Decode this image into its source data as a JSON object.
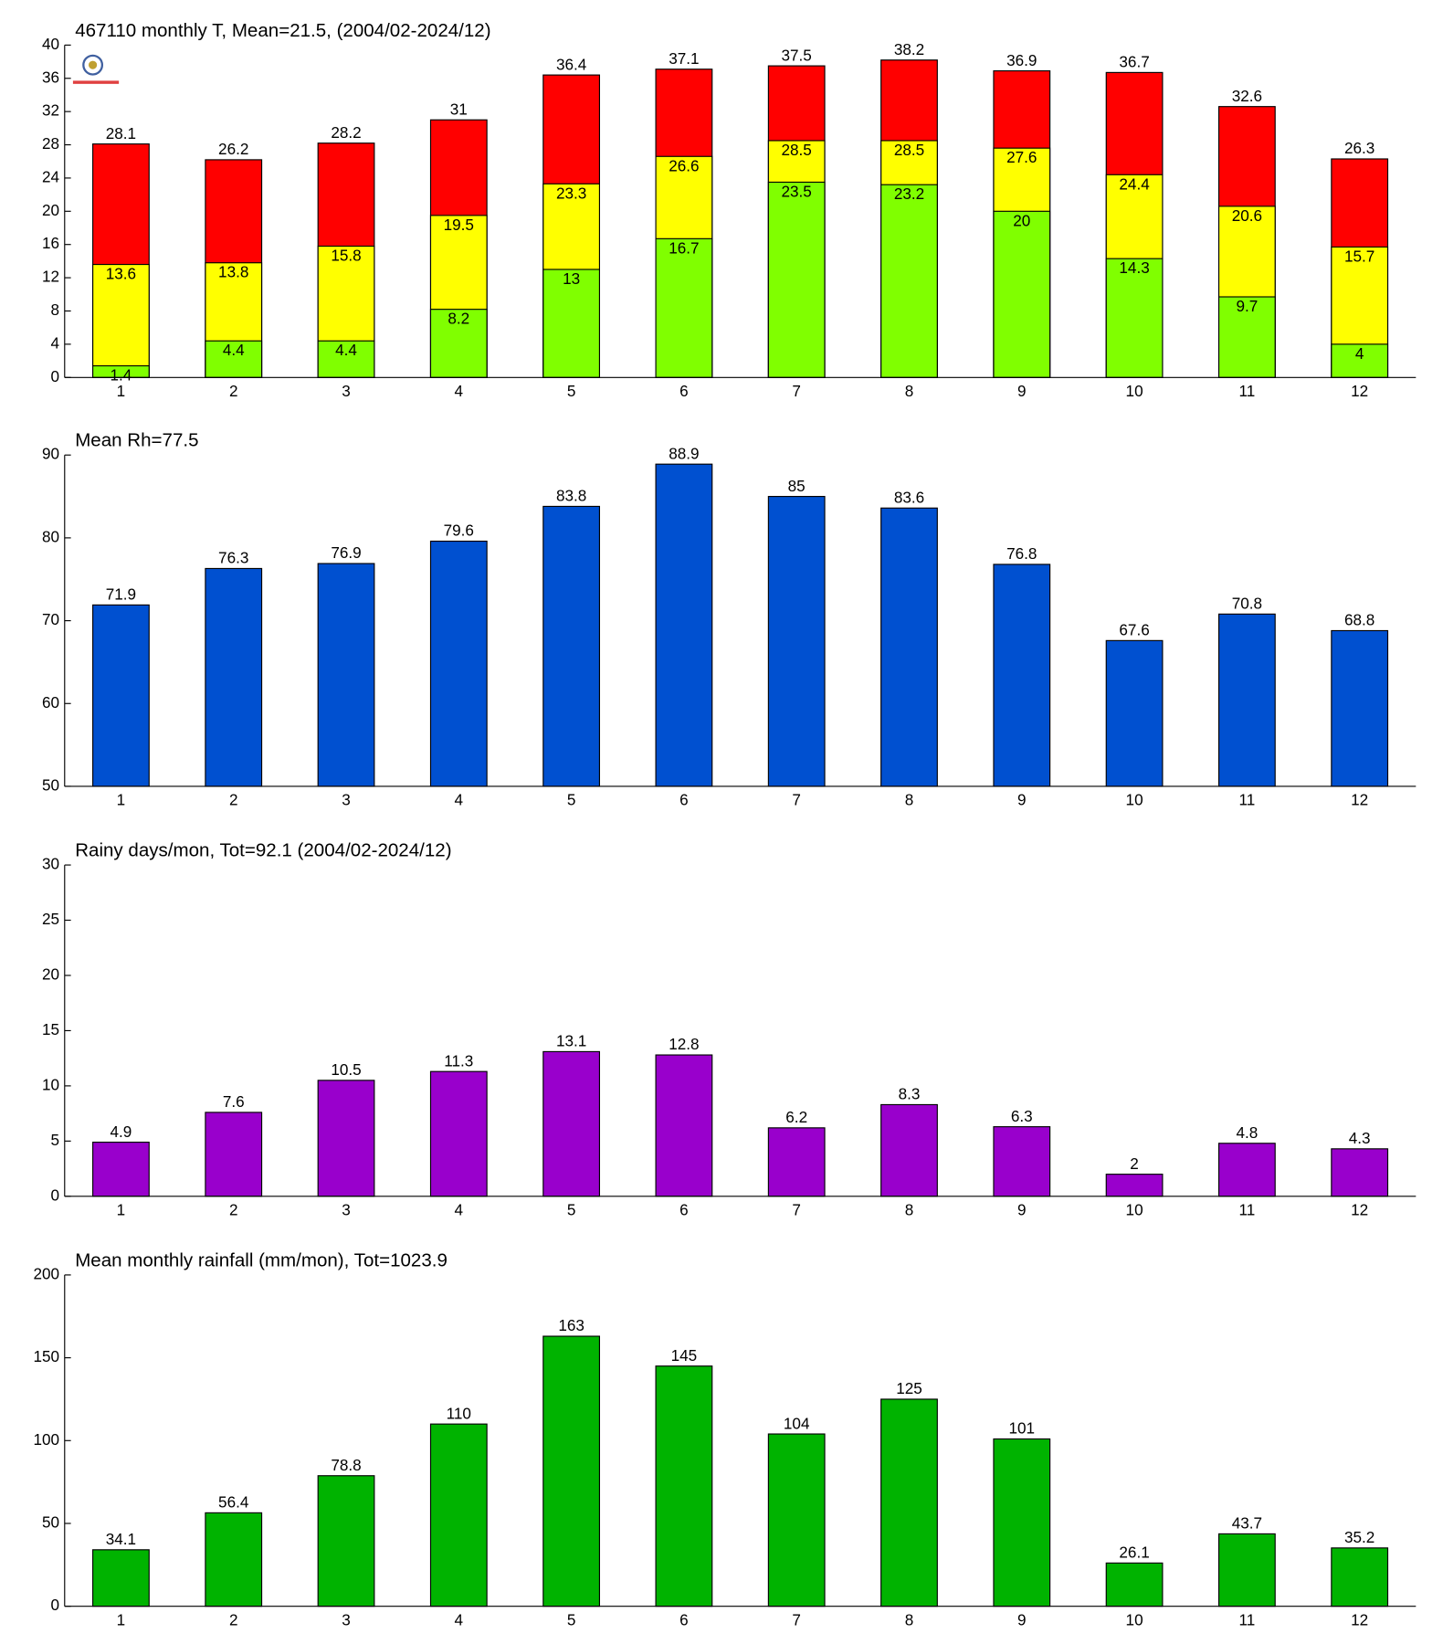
{
  "chart_data": [
    {
      "type": "bar",
      "barmode": "overlay",
      "title": "467110 monthly T, Mean=21.5, (2004/02-2024/12)",
      "categories": [
        "1",
        "2",
        "3",
        "4",
        "5",
        "6",
        "7",
        "8",
        "9",
        "10",
        "11",
        "12"
      ],
      "series": [
        {
          "color": "#ff0000",
          "values": [
            28.1,
            26.2,
            28.2,
            31,
            36.4,
            37.1,
            37.5,
            38.2,
            36.9,
            36.7,
            32.6,
            26.3
          ]
        },
        {
          "color": "#ffff00",
          "values": [
            13.6,
            13.8,
            15.8,
            19.5,
            23.3,
            26.6,
            28.5,
            28.5,
            27.6,
            24.4,
            20.6,
            15.7
          ]
        },
        {
          "color": "#80ff00",
          "values": [
            1.4,
            4.4,
            4.4,
            8.2,
            13,
            16.7,
            23.5,
            23.2,
            20,
            14.3,
            9.7,
            4
          ]
        }
      ],
      "ylim": [
        0,
        40
      ],
      "yticks": [
        0,
        4,
        8,
        12,
        16,
        20,
        24,
        28,
        32,
        36,
        40
      ]
    },
    {
      "type": "bar",
      "title": "Mean Rh=77.5",
      "categories": [
        "1",
        "2",
        "3",
        "4",
        "5",
        "6",
        "7",
        "8",
        "9",
        "10",
        "11",
        "12"
      ],
      "color": "#0050d0",
      "values": [
        71.9,
        76.3,
        76.9,
        79.6,
        83.8,
        88.9,
        85,
        83.6,
        76.8,
        67.6,
        70.8,
        68.8
      ],
      "ylim": [
        50,
        90
      ],
      "yticks": [
        50,
        60,
        70,
        80,
        90
      ]
    },
    {
      "type": "bar",
      "title": "Rainy days/mon, Tot=92.1 (2004/02-2024/12)",
      "categories": [
        "1",
        "2",
        "3",
        "4",
        "5",
        "6",
        "7",
        "8",
        "9",
        "10",
        "11",
        "12"
      ],
      "color": "#9900cc",
      "values": [
        4.9,
        7.6,
        10.5,
        11.3,
        13.1,
        12.8,
        6.2,
        8.3,
        6.3,
        2,
        4.8,
        4.3
      ],
      "ylim": [
        0,
        30
      ],
      "yticks": [
        0,
        5,
        10,
        15,
        20,
        25,
        30
      ]
    },
    {
      "type": "bar",
      "title": "Mean monthly rainfall (mm/mon), Tot=1023.9",
      "categories": [
        "1",
        "2",
        "3",
        "4",
        "5",
        "6",
        "7",
        "8",
        "9",
        "10",
        "11",
        "12"
      ],
      "color": "#00b300",
      "values": [
        34.1,
        56.4,
        78.8,
        110,
        163,
        145,
        104,
        125,
        101,
        26.1,
        43.7,
        35.2
      ],
      "ylim": [
        0,
        200
      ],
      "yticks": [
        0,
        50,
        100,
        150,
        200
      ]
    }
  ]
}
